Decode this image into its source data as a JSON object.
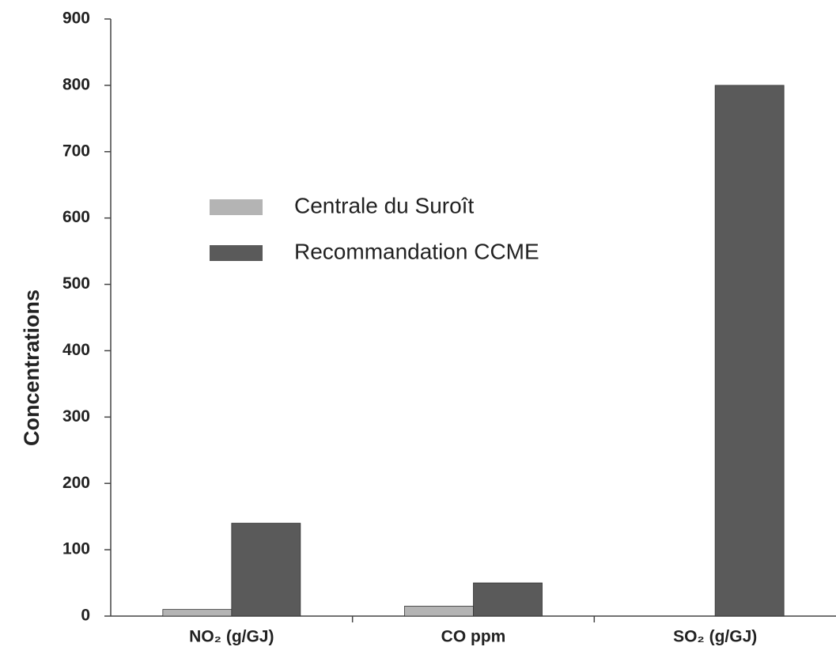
{
  "chart_data": {
    "type": "bar",
    "categories": [
      "NO₂ (g/GJ)",
      "CO ppm",
      "SO₂ (g/GJ)"
    ],
    "series": [
      {
        "name": "Centrale du Suroît",
        "color": "#b4b4b4",
        "values": [
          10,
          15,
          0
        ]
      },
      {
        "name": "Recommandation CCME",
        "color": "#5a5a5a",
        "values": [
          140,
          50,
          800
        ]
      }
    ],
    "y_label": "Concentrations",
    "ylim": [
      0,
      900
    ],
    "yticks": [
      0,
      100,
      200,
      300,
      400,
      500,
      600,
      700,
      800,
      900
    ],
    "grid": false
  }
}
